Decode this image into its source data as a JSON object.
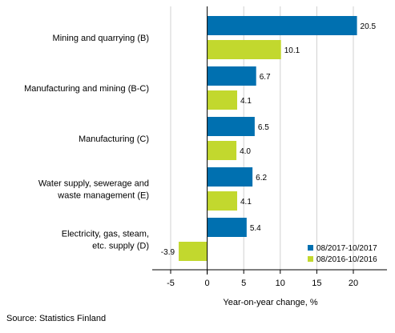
{
  "chart_data": {
    "type": "bar",
    "orientation": "horizontal",
    "categories": [
      [
        "Mining and quarrying (B)"
      ],
      [
        "Manufacturing and mining (B-C)"
      ],
      [
        "Manufacturing (C)"
      ],
      [
        "Water supply, sewerage and",
        "waste management (E)"
      ],
      [
        "Electricity, gas, steam,",
        "etc. supply (D)"
      ]
    ],
    "series": [
      {
        "name": "08/2017-10/2017",
        "color": "#0070B0",
        "values": [
          20.5,
          6.7,
          6.5,
          6.2,
          5.4
        ],
        "labels": [
          "20.5",
          "6.7",
          "6.5",
          "6.2",
          "5.4"
        ]
      },
      {
        "name": "08/2016-10/2016",
        "color": "#C2D82E",
        "values": [
          10.1,
          4.1,
          4.0,
          4.1,
          -3.9
        ],
        "labels": [
          "10.1",
          "4.1",
          "4.0",
          "4.1",
          "-3.9"
        ]
      }
    ],
    "xlim": [
      -5,
      25
    ],
    "xticks": [
      -5,
      0,
      5,
      10,
      15,
      20
    ],
    "xlabel": "Year-on-year change, %",
    "legend_position": "bottom-right",
    "grid": "vertical"
  },
  "source": "Source: Statistics Finland"
}
